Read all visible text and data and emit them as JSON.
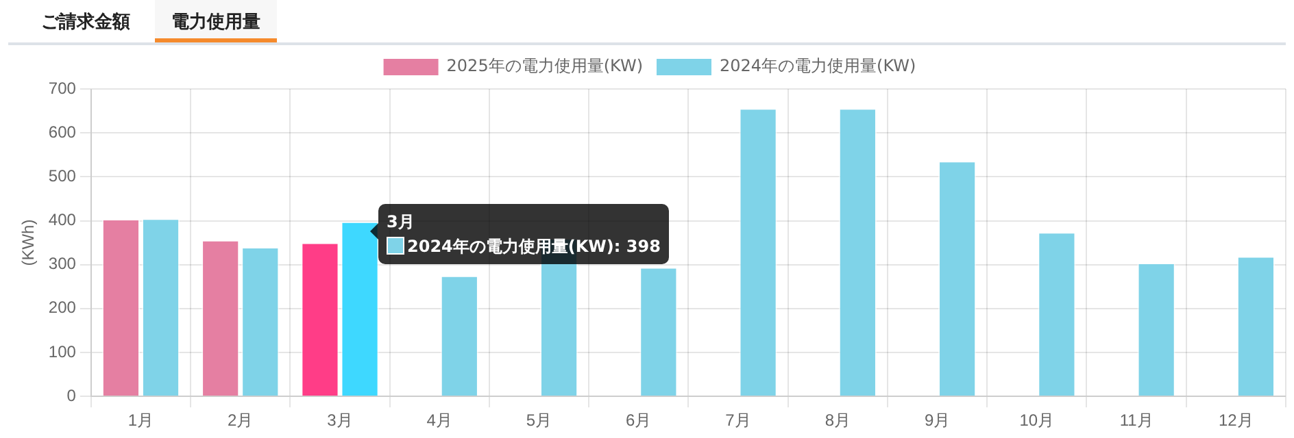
{
  "chart_data": {
    "type": "bar",
    "ylabel": "(KWh)",
    "categories": [
      "1月",
      "2月",
      "3月",
      "4月",
      "5月",
      "6月",
      "7月",
      "8月",
      "9月",
      "10月",
      "11月",
      "12月"
    ],
    "series": [
      {
        "name": "2025年の電力使用量(KW)",
        "color": "#e57fa2",
        "colors": [
          "#e57fa2",
          "#e57fa2",
          "#ff3d87",
          "#e57fa2",
          "#e57fa2",
          "#e57fa2",
          "#e57fa2",
          "#e57fa2",
          "#e57fa2",
          "#e57fa2",
          "#e57fa2",
          "#e57fa2"
        ],
        "values": [
          404,
          356,
          350,
          null,
          null,
          null,
          null,
          null,
          null,
          null,
          null,
          null
        ]
      },
      {
        "name": "2024年の電力使用量(KW)",
        "color": "#7fd3e8",
        "colors": [
          "#7fd3e8",
          "#7fd3e8",
          "#3ed8ff",
          "#7fd3e8",
          "#7fd3e8",
          "#7fd3e8",
          "#7fd3e8",
          "#7fd3e8",
          "#7fd3e8",
          "#7fd3e8",
          "#7fd3e8",
          "#7fd3e8"
        ],
        "values": [
          405,
          340,
          398,
          275,
          360,
          294,
          656,
          656,
          536,
          374,
          304,
          319
        ]
      }
    ],
    "ylim": [
      0,
      700
    ],
    "yticks": [
      0,
      100,
      200,
      300,
      400,
      500,
      600,
      700
    ],
    "grid": true,
    "legend": "top",
    "annotations": [
      "ご請求金額",
      "電力使用量",
      "3月\n2024年の電力使用量(KW): 398"
    ]
  }
}
